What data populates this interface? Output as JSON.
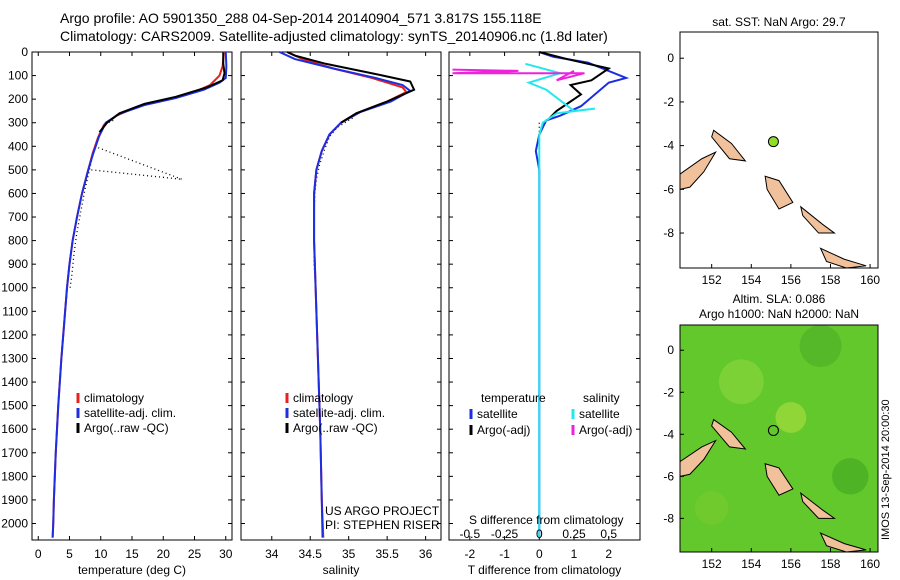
{
  "header": {
    "title_line1": "Argo profile: AO 5901350_288 04-Sep-2014 20140904_571 3.817S 155.118E",
    "title_line2": "Climatology: CARS2009. Satellite-adjusted climatology: synTS_20140906.nc (1.8d later)"
  },
  "stamp": "IMOS 13-Sep-2014 20:00:30",
  "colors": {
    "climatology": "#e8211f",
    "satellite": "#1c2ee0",
    "argo": "#000000",
    "sal_satellite": "#22e8ee",
    "sal_argo": "#ee22dd",
    "land": "#f1c19b",
    "argo_marker": "#8fdc2a",
    "sla_field": "#62c82c"
  },
  "chart_data": [
    {
      "type": "line",
      "id": "temperature",
      "xlabel": "temperature (deg C)",
      "xlim": [
        -1,
        31
      ],
      "xticks": [
        0,
        5,
        10,
        15,
        20,
        25,
        30
      ],
      "ylim": [
        2070,
        0
      ],
      "yticks": [
        0,
        100,
        200,
        300,
        400,
        500,
        600,
        700,
        800,
        900,
        1000,
        1100,
        1200,
        1300,
        1400,
        1500,
        1600,
        1700,
        1800,
        1900,
        2000
      ],
      "legend": [
        "climatology",
        "satellite-adj. clim.",
        "Argo(..raw -QC)"
      ],
      "series": [
        {
          "name": "climatology",
          "color_key": "climatology",
          "points": [
            [
              29.7,
              0
            ],
            [
              29.5,
              60
            ],
            [
              29.0,
              100
            ],
            [
              27.5,
              140
            ],
            [
              25,
              170
            ],
            [
              21,
              200
            ],
            [
              16,
              230
            ],
            [
              12.5,
              270
            ],
            [
              10.5,
              310
            ],
            [
              9.6,
              360
            ],
            [
              8.7,
              430
            ],
            [
              8,
              500
            ],
            [
              7,
              600
            ],
            [
              6.2,
              700
            ],
            [
              5.5,
              800
            ],
            [
              5.0,
              900
            ],
            [
              4.6,
              1000
            ],
            [
              4.3,
              1100
            ],
            [
              4.0,
              1200
            ],
            [
              3.7,
              1300
            ],
            [
              3.45,
              1400
            ],
            [
              3.2,
              1500
            ],
            [
              3.0,
              1600
            ],
            [
              2.8,
              1700
            ],
            [
              2.65,
              1800
            ],
            [
              2.5,
              1900
            ],
            [
              2.4,
              2000
            ],
            [
              2.3,
              2060
            ]
          ]
        },
        {
          "name": "satellite-adj. clim.",
          "color_key": "satellite",
          "points": [
            [
              30.0,
              0
            ],
            [
              30.1,
              60
            ],
            [
              30.0,
              110
            ],
            [
              29,
              130
            ],
            [
              26.5,
              160
            ],
            [
              22,
              195
            ],
            [
              17,
              225
            ],
            [
              13,
              262
            ],
            [
              10.8,
              300
            ],
            [
              9.7,
              360
            ],
            [
              8.8,
              430
            ],
            [
              8,
              500
            ],
            [
              7,
              600
            ],
            [
              6.2,
              700
            ],
            [
              5.5,
              800
            ],
            [
              5.0,
              900
            ],
            [
              4.6,
              1000
            ],
            [
              4.3,
              1100
            ],
            [
              4.0,
              1200
            ],
            [
              3.7,
              1300
            ],
            [
              3.45,
              1400
            ],
            [
              3.2,
              1500
            ],
            [
              3.0,
              1600
            ],
            [
              2.8,
              1700
            ],
            [
              2.65,
              1800
            ],
            [
              2.5,
              1900
            ],
            [
              2.4,
              2000
            ],
            [
              2.3,
              2060
            ]
          ]
        },
        {
          "name": "Argo(..raw -QC)",
          "color_key": "argo",
          "points": [
            [
              29.6,
              2
            ],
            [
              29.6,
              50
            ],
            [
              29.8,
              90
            ],
            [
              29.5,
              120
            ],
            [
              27,
              150
            ],
            [
              22,
              190
            ],
            [
              17,
              220
            ],
            [
              13,
              260
            ],
            [
              11,
              300
            ],
            [
              9.8,
              340
            ]
          ]
        }
      ],
      "dotted": [
        [
          [
            12,
            290
          ],
          [
            10.8,
            305
          ],
          [
            9.8,
            345
          ],
          [
            9.2,
            400
          ],
          [
            8.6,
            450
          ],
          [
            8.2,
            500
          ],
          [
            7.5,
            580
          ],
          [
            7,
            650
          ],
          [
            6.5,
            720
          ],
          [
            6.1,
            780
          ],
          [
            5.7,
            860
          ],
          [
            5.4,
            940
          ],
          [
            5.1,
            1000
          ]
        ],
        [
          [
            9,
            400
          ],
          [
            23,
            540
          ]
        ],
        [
          [
            8.5,
            500
          ],
          [
            23,
            540
          ]
        ]
      ]
    },
    {
      "type": "line",
      "id": "salinity",
      "xlabel": "salinity",
      "xlim": [
        33.6,
        36.2
      ],
      "xticks": [
        34,
        34.5,
        35,
        35.5,
        36
      ],
      "ylim": [
        2070,
        0
      ],
      "legend": [
        "climatology",
        "satellite-adj. clim.",
        "Argo(..raw -QC)"
      ],
      "annotation": [
        "US ARGO PROJECT",
        "PI: STEPHEN RISER"
      ],
      "series": [
        {
          "name": "climatology",
          "color_key": "climatology",
          "points": [
            [
              34.2,
              0
            ],
            [
              34.4,
              30
            ],
            [
              34.8,
              70
            ],
            [
              35.3,
              110
            ],
            [
              35.7,
              150
            ],
            [
              35.75,
              170
            ],
            [
              35.5,
              210
            ],
            [
              35.1,
              260
            ],
            [
              34.9,
              300
            ],
            [
              34.75,
              350
            ],
            [
              34.65,
              420
            ],
            [
              34.58,
              500
            ],
            [
              34.55,
              600
            ],
            [
              34.55,
              800
            ],
            [
              34.57,
              1000
            ],
            [
              34.6,
              1300
            ],
            [
              34.63,
              1600
            ],
            [
              34.65,
              1900
            ],
            [
              34.67,
              2060
            ]
          ]
        },
        {
          "name": "satellite-adj. clim.",
          "color_key": "satellite",
          "points": [
            [
              34.1,
              0
            ],
            [
              34.3,
              30
            ],
            [
              34.8,
              70
            ],
            [
              35.35,
              110
            ],
            [
              35.7,
              140
            ],
            [
              35.8,
              165
            ],
            [
              35.55,
              210
            ],
            [
              35.15,
              255
            ],
            [
              34.9,
              300
            ],
            [
              34.75,
              350
            ],
            [
              34.65,
              420
            ],
            [
              34.58,
              500
            ],
            [
              34.55,
              600
            ],
            [
              34.55,
              800
            ],
            [
              34.57,
              1000
            ],
            [
              34.6,
              1300
            ],
            [
              34.63,
              1600
            ],
            [
              34.65,
              1900
            ],
            [
              34.66,
              2060
            ]
          ]
        },
        {
          "name": "Argo(..raw -QC)",
          "color_key": "argo",
          "points": [
            [
              34.2,
              0
            ],
            [
              34.3,
              15
            ],
            [
              34.7,
              50
            ],
            [
              35.3,
              90
            ],
            [
              35.8,
              125
            ],
            [
              35.85,
              160
            ],
            [
              35.5,
              210
            ],
            [
              35.1,
              260
            ],
            [
              34.9,
              300
            ]
          ]
        }
      ],
      "dotted": [
        [
          [
            35.05,
            280
          ],
          [
            34.85,
            320
          ],
          [
            34.75,
            360
          ],
          [
            34.68,
            420
          ],
          [
            34.62,
            480
          ],
          [
            34.58,
            540
          ],
          [
            34.56,
            600
          ],
          [
            34.55,
            700
          ],
          [
            34.55,
            800
          ],
          [
            34.55,
            900
          ],
          [
            34.57,
            1000
          ]
        ]
      ]
    },
    {
      "type": "line",
      "id": "difference",
      "xlabel": "T difference from climatology",
      "xlabel_top": "S difference from climatology",
      "xlim": [
        -2.6,
        2.9
      ],
      "xticks": [
        -2,
        -1,
        0,
        1,
        2
      ],
      "sticks_values": [
        -2,
        -1,
        0,
        1,
        2
      ],
      "sticks_labels": [
        "-0.5",
        "-0.25",
        "0",
        "0.25",
        "0.5"
      ],
      "ylim": [
        2070,
        0
      ],
      "legend": {
        "temperature_heading": "temperature",
        "salinity_heading": "salinity",
        "entries": [
          "satellite",
          "Argo(-adj)",
          "satellite",
          "Argo(-adj)"
        ]
      },
      "series": [
        {
          "name": "satellite",
          "color_key": "satellite",
          "points": [
            [
              0,
              0
            ],
            [
              0.4,
              20
            ],
            [
              1.4,
              45
            ],
            [
              2.5,
              110
            ],
            [
              2.0,
              130
            ],
            [
              1.2,
              230
            ],
            [
              0.6,
              270
            ],
            [
              0.2,
              290
            ],
            [
              0,
              350
            ],
            [
              -0.1,
              420
            ],
            [
              0,
              500
            ],
            [
              0,
              700
            ],
            [
              0,
              2060
            ]
          ]
        },
        {
          "name": "Argo(-adj)",
          "color_key": "argo",
          "points": [
            [
              0,
              0
            ],
            [
              0.8,
              30
            ],
            [
              2.0,
              70
            ],
            [
              1.5,
              120
            ],
            [
              0.9,
              140
            ],
            [
              1.2,
              180
            ],
            [
              0.8,
              220
            ],
            [
              0.5,
              250
            ],
            [
              0.3,
              280
            ]
          ]
        },
        {
          "name": "satellite",
          "color_key": "sal_satellite",
          "points": [
            [
              -0.4,
              50
            ],
            [
              0.6,
              90
            ],
            [
              -0.3,
              130
            ],
            [
              0.2,
              160
            ],
            [
              1.0,
              250
            ],
            [
              1.6,
              240
            ],
            [
              0.5,
              260
            ],
            [
              0.1,
              300
            ],
            [
              0,
              350
            ],
            [
              0,
              500
            ],
            [
              0,
              1000
            ],
            [
              0,
              2060
            ]
          ]
        },
        {
          "name": "Argo(-adj)",
          "color_key": "sal_argo",
          "points": [
            [
              -2.5,
              75
            ],
            [
              -0.6,
              80
            ],
            [
              -2.5,
              90
            ],
            [
              1.3,
              90
            ],
            [
              0.5,
              120
            ],
            [
              1.0,
              80
            ]
          ]
        }
      ],
      "dotted": [
        [
          [
            0,
            300
          ],
          [
            0,
            380
          ]
        ]
      ]
    }
  ],
  "maps": {
    "sst": {
      "title": "sat. SST: NaN Argo: 29.7",
      "xticks": [
        152,
        154,
        156,
        158,
        160
      ],
      "yticks": [
        0,
        -2,
        -4,
        -6,
        -8
      ],
      "xlim": [
        150.4,
        160.4
      ],
      "ylim": [
        -9.6,
        1.2
      ],
      "marker": {
        "lon": 155.118,
        "lat": -3.817
      }
    },
    "sla": {
      "title_line1": "Altim. SLA: 0.086",
      "title_line2": "Argo h1000: NaN h2000: NaN",
      "xticks": [
        152,
        154,
        156,
        158,
        160
      ],
      "yticks": [
        0,
        -2,
        -4,
        -6,
        -8
      ],
      "xlim": [
        150.4,
        160.4
      ],
      "ylim": [
        -9.6,
        1.2
      ],
      "marker": {
        "lon": 155.118,
        "lat": -3.817
      }
    }
  }
}
